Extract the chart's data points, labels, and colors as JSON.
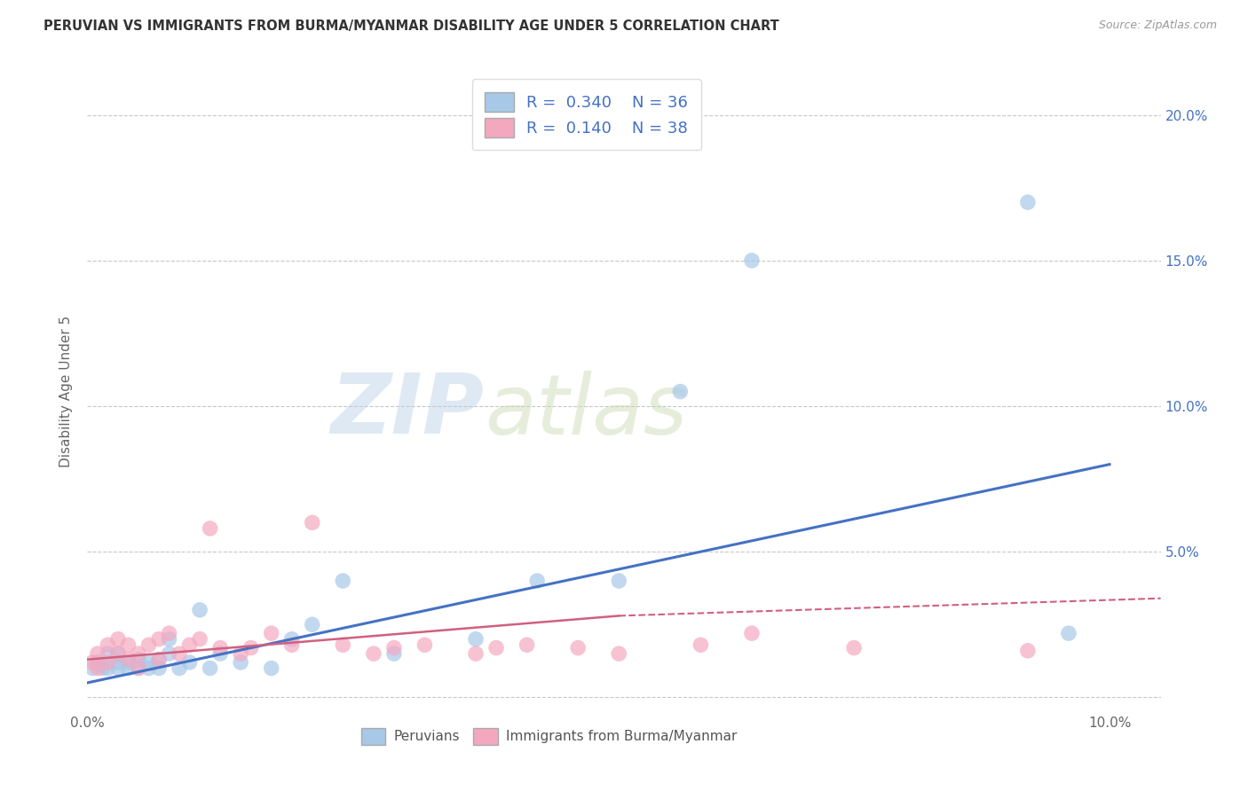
{
  "title": "PERUVIAN VS IMMIGRANTS FROM BURMA/MYANMAR DISABILITY AGE UNDER 5 CORRELATION CHART",
  "source": "Source: ZipAtlas.com",
  "ylabel": "Disability Age Under 5",
  "xlim": [
    0.0,
    0.105
  ],
  "ylim": [
    -0.005,
    0.215
  ],
  "ytick_values": [
    0.0,
    0.05,
    0.1,
    0.15,
    0.2
  ],
  "xtick_values": [
    0.0,
    0.1
  ],
  "blue_R": 0.34,
  "blue_N": 36,
  "pink_R": 0.14,
  "pink_N": 38,
  "blue_color": "#a8c8e8",
  "pink_color": "#f4a8c0",
  "blue_line_color": "#4472c4",
  "pink_line_color": "#d06080",
  "watermark_zip": "ZIP",
  "watermark_atlas": "atlas",
  "background_color": "#ffffff",
  "grid_color": "#c8c8c8",
  "blue_scatter_x": [
    0.0005,
    0.001,
    0.0015,
    0.002,
    0.002,
    0.003,
    0.003,
    0.003,
    0.004,
    0.004,
    0.005,
    0.005,
    0.006,
    0.006,
    0.007,
    0.007,
    0.008,
    0.008,
    0.009,
    0.01,
    0.011,
    0.012,
    0.013,
    0.015,
    0.018,
    0.02,
    0.022,
    0.025,
    0.03,
    0.038,
    0.044,
    0.052,
    0.058,
    0.065,
    0.092,
    0.096
  ],
  "blue_scatter_y": [
    0.01,
    0.012,
    0.01,
    0.015,
    0.01,
    0.012,
    0.015,
    0.01,
    0.012,
    0.01,
    0.013,
    0.01,
    0.012,
    0.01,
    0.013,
    0.01,
    0.015,
    0.02,
    0.01,
    0.012,
    0.03,
    0.01,
    0.015,
    0.012,
    0.01,
    0.02,
    0.025,
    0.04,
    0.015,
    0.02,
    0.04,
    0.04,
    0.105,
    0.15,
    0.17,
    0.022
  ],
  "pink_scatter_x": [
    0.0005,
    0.001,
    0.001,
    0.002,
    0.002,
    0.003,
    0.003,
    0.004,
    0.004,
    0.005,
    0.005,
    0.006,
    0.007,
    0.007,
    0.008,
    0.009,
    0.01,
    0.011,
    0.012,
    0.013,
    0.015,
    0.016,
    0.018,
    0.02,
    0.022,
    0.025,
    0.028,
    0.03,
    0.033,
    0.038,
    0.04,
    0.043,
    0.048,
    0.052,
    0.06,
    0.065,
    0.075,
    0.092
  ],
  "pink_scatter_y": [
    0.012,
    0.01,
    0.015,
    0.012,
    0.018,
    0.015,
    0.02,
    0.013,
    0.018,
    0.01,
    0.015,
    0.018,
    0.013,
    0.02,
    0.022,
    0.015,
    0.018,
    0.02,
    0.058,
    0.017,
    0.015,
    0.017,
    0.022,
    0.018,
    0.06,
    0.018,
    0.015,
    0.017,
    0.018,
    0.015,
    0.017,
    0.018,
    0.017,
    0.015,
    0.018,
    0.022,
    0.017,
    0.016
  ],
  "right_ytick_labels": [
    "20.0%",
    "15.0%",
    "10.0%",
    "5.0%"
  ],
  "right_ytick_values": [
    0.2,
    0.15,
    0.1,
    0.05
  ]
}
